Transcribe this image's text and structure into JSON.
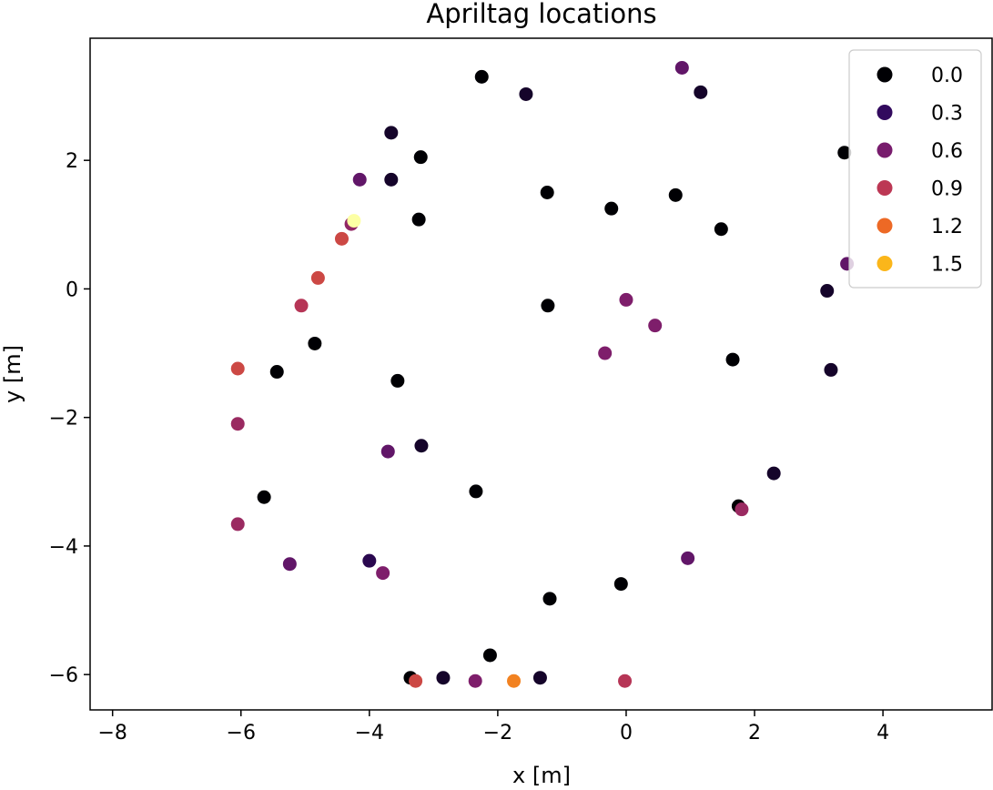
{
  "chart_data": {
    "type": "scatter",
    "title": "Apriltag locations",
    "xlabel": "x [m]",
    "ylabel": "y [m]",
    "xlim": [
      -8.35,
      5.7
    ],
    "ylim": [
      -6.55,
      3.9
    ],
    "xticks": [
      -8,
      -6,
      -4,
      -2,
      0,
      2,
      4
    ],
    "xtick_labels": [
      "−8",
      "−6",
      "−4",
      "−2",
      "0",
      "2",
      "4"
    ],
    "yticks": [
      -6,
      -4,
      -2,
      0,
      2
    ],
    "ytick_labels": [
      "−6",
      "−4",
      "−2",
      "0",
      "2"
    ],
    "grid": false,
    "legend_position": "top-right",
    "legend": [
      {
        "label": "0.0",
        "color": "#000004"
      },
      {
        "label": "0.3",
        "color": "#320a5e"
      },
      {
        "label": "0.6",
        "color": "#781c6d"
      },
      {
        "label": "0.9",
        "color": "#bc3754"
      },
      {
        "label": "1.2",
        "color": "#ed6925"
      },
      {
        "label": "1.5",
        "color": "#fbb61a"
      }
    ],
    "points": [
      {
        "x": -2.25,
        "y": 3.3,
        "c": 0.0
      },
      {
        "x": -1.56,
        "y": 3.03,
        "c": 0.15
      },
      {
        "x": 0.87,
        "y": 3.44,
        "c": 0.6
      },
      {
        "x": 1.16,
        "y": 3.06,
        "c": 0.15
      },
      {
        "x": -3.66,
        "y": 2.43,
        "c": 0.15
      },
      {
        "x": -3.2,
        "y": 2.05,
        "c": 0.0
      },
      {
        "x": 3.4,
        "y": 2.12,
        "c": 0.0
      },
      {
        "x": -4.15,
        "y": 1.7,
        "c": 0.6
      },
      {
        "x": -3.66,
        "y": 1.7,
        "c": 0.15
      },
      {
        "x": -1.23,
        "y": 1.5,
        "c": 0.0
      },
      {
        "x": 0.77,
        "y": 1.46,
        "c": 0.0
      },
      {
        "x": -0.23,
        "y": 1.25,
        "c": 0.0
      },
      {
        "x": -3.23,
        "y": 1.08,
        "c": 0.0
      },
      {
        "x": -4.28,
        "y": 1.01,
        "c": 0.85
      },
      {
        "x": -4.24,
        "y": 1.06,
        "c": 1.8
      },
      {
        "x": 1.48,
        "y": 0.93,
        "c": 0.0
      },
      {
        "x": -4.43,
        "y": 0.78,
        "c": 1.2
      },
      {
        "x": -4.8,
        "y": 0.17,
        "c": 1.2
      },
      {
        "x": 3.44,
        "y": 0.39,
        "c": 0.6
      },
      {
        "x": 3.13,
        "y": -0.03,
        "c": 0.15
      },
      {
        "x": -5.06,
        "y": -0.26,
        "c": 1.05
      },
      {
        "x": -1.22,
        "y": -0.26,
        "c": 0.0
      },
      {
        "x": 0.0,
        "y": -0.17,
        "c": 0.75
      },
      {
        "x": 0.45,
        "y": -0.57,
        "c": 0.75
      },
      {
        "x": -4.85,
        "y": -0.85,
        "c": 0.0
      },
      {
        "x": -0.33,
        "y": -1.0,
        "c": 0.75
      },
      {
        "x": -5.44,
        "y": -1.29,
        "c": 0.0
      },
      {
        "x": -6.05,
        "y": -1.24,
        "c": 1.2
      },
      {
        "x": -3.56,
        "y": -1.43,
        "c": 0.0
      },
      {
        "x": 1.66,
        "y": -1.1,
        "c": 0.0
      },
      {
        "x": 3.19,
        "y": -1.26,
        "c": 0.15
      },
      {
        "x": -6.05,
        "y": -2.1,
        "c": 0.9
      },
      {
        "x": -3.71,
        "y": -2.53,
        "c": 0.6
      },
      {
        "x": -3.19,
        "y": -2.44,
        "c": 0.15
      },
      {
        "x": 2.3,
        "y": -2.87,
        "c": 0.15
      },
      {
        "x": -2.34,
        "y": -3.15,
        "c": 0.0
      },
      {
        "x": -5.64,
        "y": -3.24,
        "c": 0.0
      },
      {
        "x": 1.75,
        "y": -3.38,
        "c": 0.0
      },
      {
        "x": 1.8,
        "y": -3.43,
        "c": 0.9
      },
      {
        "x": -6.05,
        "y": -3.66,
        "c": 0.9
      },
      {
        "x": -5.24,
        "y": -4.28,
        "c": 0.6
      },
      {
        "x": -4.0,
        "y": -4.23,
        "c": 0.3
      },
      {
        "x": -3.79,
        "y": -4.42,
        "c": 0.75
      },
      {
        "x": 0.96,
        "y": -4.19,
        "c": 0.6
      },
      {
        "x": -1.19,
        "y": -4.82,
        "c": 0.0
      },
      {
        "x": -0.08,
        "y": -4.59,
        "c": 0.0
      },
      {
        "x": -2.12,
        "y": -5.7,
        "c": 0.0
      },
      {
        "x": -3.36,
        "y": -6.05,
        "c": 0.0
      },
      {
        "x": -3.28,
        "y": -6.1,
        "c": 1.2
      },
      {
        "x": -2.85,
        "y": -6.05,
        "c": 0.15
      },
      {
        "x": -2.35,
        "y": -6.1,
        "c": 0.75
      },
      {
        "x": -1.75,
        "y": -6.1,
        "c": 1.5
      },
      {
        "x": -1.34,
        "y": -6.05,
        "c": 0.15
      },
      {
        "x": -0.02,
        "y": -6.1,
        "c": 1.05
      }
    ]
  }
}
